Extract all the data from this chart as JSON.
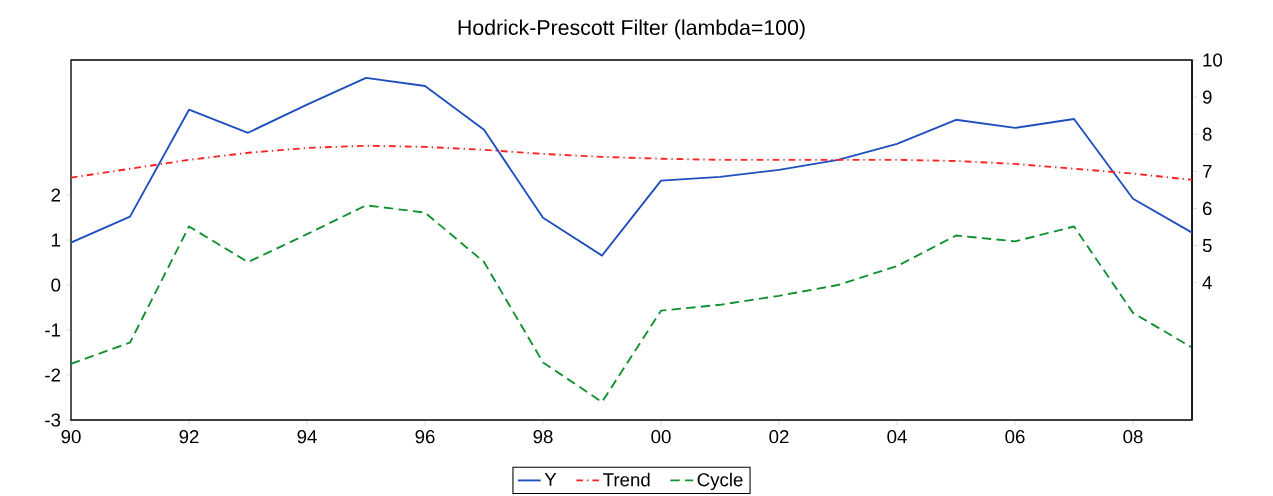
{
  "chart_data": {
    "type": "line",
    "title": "Hodrick-Prescott Filter (lambda=100)",
    "x": [
      1990,
      1991,
      1992,
      1993,
      1994,
      1995,
      1996,
      1997,
      1998,
      1999,
      2000,
      2001,
      2002,
      2003,
      2004,
      2005,
      2006,
      2007,
      2008,
      2009
    ],
    "series": [
      {
        "name": "Y",
        "color": "#1f4fbf",
        "axis": "y2",
        "line_style": "solid",
        "values": [
          5.08,
          5.78,
          8.66,
          8.04,
          8.8,
          9.52,
          9.3,
          8.12,
          5.75,
          4.73,
          6.75,
          6.85,
          7.04,
          7.31,
          7.74,
          8.39,
          8.17,
          8.41,
          6.26,
          5.35
        ]
      },
      {
        "name": "Trend",
        "color": "#ff2020",
        "axis": "y2",
        "line_style": "dashdot",
        "values": [
          6.83,
          7.07,
          7.31,
          7.5,
          7.63,
          7.69,
          7.66,
          7.58,
          7.47,
          7.39,
          7.34,
          7.31,
          7.31,
          7.31,
          7.31,
          7.28,
          7.2,
          7.07,
          6.94,
          6.77
        ]
      },
      {
        "name": "Cycle",
        "color": "#109030",
        "axis": "y",
        "line_style": "dashed",
        "values": [
          -1.75,
          -1.28,
          1.3,
          0.51,
          1.13,
          1.77,
          1.61,
          0.51,
          -1.72,
          -2.6,
          -0.57,
          -0.44,
          -0.24,
          0.0,
          0.42,
          1.1,
          0.97,
          1.3,
          -0.62,
          -1.39
        ]
      }
    ],
    "xlim": [
      1990,
      2009
    ],
    "xticks": [
      {
        "value": 1990,
        "label": "90"
      },
      {
        "value": 1992,
        "label": "92"
      },
      {
        "value": 1994,
        "label": "94"
      },
      {
        "value": 1996,
        "label": "96"
      },
      {
        "value": 1998,
        "label": "98"
      },
      {
        "value": 2000,
        "label": "00"
      },
      {
        "value": 2002,
        "label": "02"
      },
      {
        "value": 2004,
        "label": "04"
      },
      {
        "value": 2006,
        "label": "06"
      },
      {
        "value": 2008,
        "label": "08"
      }
    ],
    "ylim": [
      -3,
      5
    ],
    "yticks": [
      -3,
      -2,
      -1,
      0,
      1,
      2
    ],
    "y2lim": [
      0.3,
      10
    ],
    "y2ticks": [
      4,
      5,
      6,
      7,
      8,
      9,
      10
    ],
    "legend": "bottom"
  }
}
